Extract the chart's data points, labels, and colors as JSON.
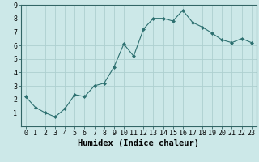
{
  "x": [
    0,
    1,
    2,
    3,
    4,
    5,
    6,
    7,
    8,
    9,
    10,
    11,
    12,
    13,
    14,
    15,
    16,
    17,
    18,
    19,
    20,
    21,
    22,
    23
  ],
  "y": [
    2.2,
    1.4,
    1.0,
    0.7,
    1.3,
    2.35,
    2.2,
    3.0,
    3.2,
    4.4,
    6.1,
    5.2,
    7.2,
    8.0,
    8.0,
    7.8,
    8.6,
    7.7,
    7.35,
    6.9,
    6.4,
    6.2,
    6.5,
    6.2
  ],
  "line_color": "#2d7070",
  "marker": "D",
  "marker_size": 2,
  "bg_color": "#cce8e8",
  "grid_color": "#aed0d0",
  "xlabel": "Humidex (Indice chaleur)",
  "xlim": [
    -0.5,
    23.5
  ],
  "ylim": [
    0,
    9
  ],
  "xticks": [
    0,
    1,
    2,
    3,
    4,
    5,
    6,
    7,
    8,
    9,
    10,
    11,
    12,
    13,
    14,
    15,
    16,
    17,
    18,
    19,
    20,
    21,
    22,
    23
  ],
  "yticks": [
    1,
    2,
    3,
    4,
    5,
    6,
    7,
    8,
    9
  ],
  "tick_fontsize": 6,
  "xlabel_fontsize": 7.5,
  "spine_color": "#336666"
}
